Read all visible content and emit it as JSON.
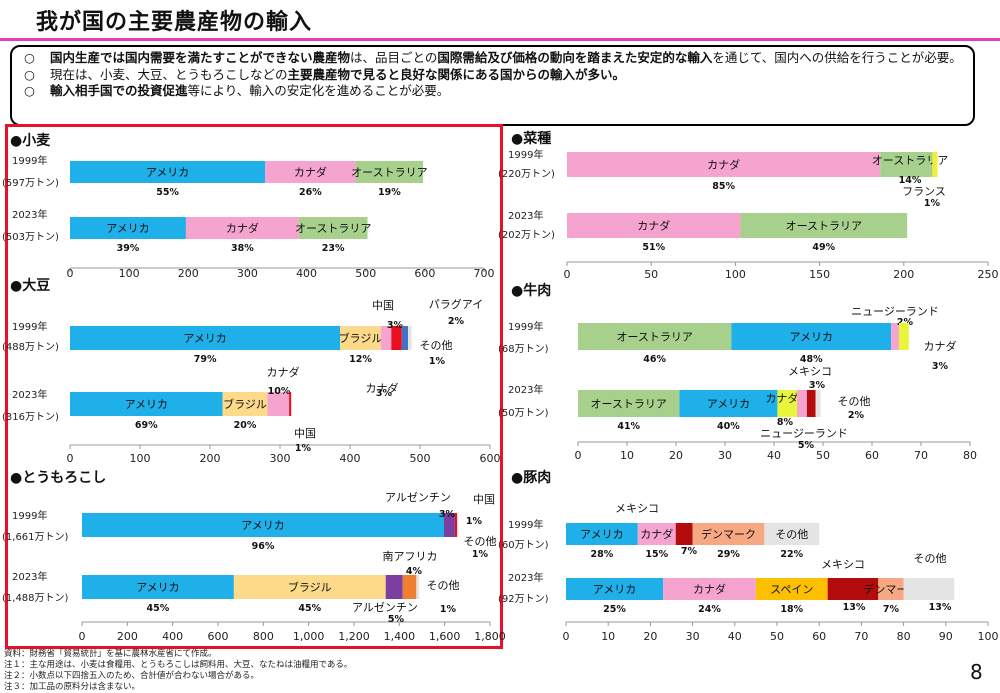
{
  "header": {
    "title": "我が国の主要農産物の輸入",
    "page_number": "8"
  },
  "summary": [
    {
      "marker": "○",
      "parts": [
        {
          "t": "国内生産では国内需要を満たすことができない農産物",
          "b": true
        },
        {
          "t": "は、品目ごとの",
          "b": false
        },
        {
          "t": "国際需給及び価格の動向を踏まえた安定的な輸入",
          "b": true
        },
        {
          "t": "を通じて、国内への供給を行うことが必要。",
          "b": false
        }
      ]
    },
    {
      "marker": "○",
      "parts": [
        {
          "t": "現在は、小麦、大豆、とうもろこしなどの",
          "b": false
        },
        {
          "t": "主要農産物で見ると良好な関係にある国からの輸入が多い。",
          "b": true
        }
      ]
    },
    {
      "marker": "○",
      "parts": [
        {
          "t": "輸入相手国での投資促進",
          "b": true
        },
        {
          "t": "等により、輸入の安定化を進めることが必要。",
          "b": false
        }
      ]
    }
  ],
  "colors": {
    "アメリカ": "#1fb0ea",
    "カナダ": "#f5a3cf",
    "オーストラリア": "#a6d08c",
    "ブラジル": "#fdd98a",
    "中国": "#e8101e",
    "パラグアイ": "#5b8ed6",
    "その他": "#e4e4e4",
    "アルゼンチン": "#7a3fa0",
    "南アフリカ": "#f07f32",
    "フランス": "#f2ee3a",
    "ニュージーランド": "#f5a3cf",
    "カナダ_牛肉": "#e8f53a",
    "メキシコ": "#b40c0c",
    "デンマーク": "#f5a882",
    "スペイン": "#fdc000",
    "南アフリカ_alt": "#f07f32",
    "パラグアイ_alt": "#4472c4"
  },
  "notes": [
    "資料：財務省「貿易統計」を基に農林水産省にて作成。",
    "注１：主な用途は、小麦は食糧用、とうもろこしは飼料用、大豆、なたねは油糧用である。",
    "注２：小数点以下四捨五入のため、合計値が合わない場合がある。",
    "注３：加工品の原料分は含まない。"
  ],
  "chart_data": [
    {
      "type": "bar",
      "orientation": "horizontal",
      "stacked": true,
      "title": "●小麦",
      "xlim": [
        0,
        700
      ],
      "xticks": [
        "0",
        "100",
        "200",
        "300",
        "400",
        "500",
        "600",
        "700"
      ],
      "rows": [
        {
          "year": "1999年",
          "total": "(597万トン)",
          "segments": [
            {
              "name": "アメリカ",
              "value": 330,
              "pct": "55%"
            },
            {
              "name": "カナダ",
              "value": 153,
              "pct": "26%"
            },
            {
              "name": "オーストラリア",
              "value": 114,
              "pct": "19%"
            }
          ]
        },
        {
          "year": "2023年",
          "total": "(503万トン)",
          "segments": [
            {
              "name": "アメリカ",
              "value": 196,
              "pct": "39%"
            },
            {
              "name": "カナダ",
              "value": 191,
              "pct": "38%"
            },
            {
              "name": "オーストラリア",
              "value": 116,
              "pct": "23%"
            }
          ]
        }
      ]
    },
    {
      "type": "bar",
      "orientation": "horizontal",
      "stacked": true,
      "title": "●大豆",
      "xlim": [
        0,
        600
      ],
      "xticks": [
        "0",
        "100",
        "200",
        "300",
        "400",
        "500",
        "600"
      ],
      "rows": [
        {
          "year": "1999年",
          "total": "(488万トン)",
          "segments": [
            {
              "name": "アメリカ",
              "value": 386,
              "pct": "79%"
            },
            {
              "name": "ブラジル",
              "value": 58,
              "pct": "12%"
            },
            {
              "name": "カナダ",
              "value": 15,
              "pct": "3%"
            },
            {
              "name": "中国",
              "value": 15,
              "pct": "3%"
            },
            {
              "name": "パラグアイ",
              "value": 9,
              "pct": "2%"
            },
            {
              "name": "その他",
              "value": 5,
              "pct": "1%"
            }
          ]
        },
        {
          "year": "2023年",
          "total": "(316万トン)",
          "segments": [
            {
              "name": "アメリカ",
              "value": 218,
              "pct": "69%"
            },
            {
              "name": "ブラジル",
              "value": 64,
              "pct": "20%"
            },
            {
              "name": "カナダ",
              "value": 31,
              "pct": "10%"
            },
            {
              "name": "中国",
              "value": 3,
              "pct": "1%"
            }
          ]
        }
      ]
    },
    {
      "type": "bar",
      "orientation": "horizontal",
      "stacked": true,
      "title": "●とうもろこし",
      "xlim": [
        0,
        1800
      ],
      "xticks": [
        "0",
        "200",
        "400",
        "600",
        "800",
        "1,000",
        "1,200",
        "1,400",
        "1,600",
        "1,800"
      ],
      "rows": [
        {
          "year": "1999年",
          "total": "(1,661万トン)",
          "segments": [
            {
              "name": "アメリカ",
              "value": 1597,
              "pct": "96%"
            },
            {
              "name": "アルゼンチン",
              "value": 48,
              "pct": "3%"
            },
            {
              "name": "中国",
              "value": 10,
              "pct": "1%"
            },
            {
              "name": "その他",
              "value": 6,
              "pct": "1%"
            }
          ]
        },
        {
          "year": "2023年",
          "total": "(1,488万トン)",
          "segments": [
            {
              "name": "アメリカ",
              "value": 670,
              "pct": "45%"
            },
            {
              "name": "ブラジル",
              "value": 670,
              "pct": "45%"
            },
            {
              "name": "アルゼンチン",
              "value": 75,
              "pct": "5%"
            },
            {
              "name": "南アフリカ",
              "value": 60,
              "pct": "4%"
            },
            {
              "name": "その他",
              "value": 13,
              "pct": "1%"
            }
          ]
        }
      ]
    },
    {
      "type": "bar",
      "orientation": "horizontal",
      "stacked": true,
      "title": "●菜種",
      "xlim": [
        0,
        250
      ],
      "xticks": [
        "0",
        "50",
        "100",
        "150",
        "200",
        "250"
      ],
      "rows": [
        {
          "year": "1999年",
          "total": "(220万トン)",
          "segments": [
            {
              "name": "カナダ",
              "value": 186,
              "pct": "85%"
            },
            {
              "name": "オーストラリア",
              "value": 31,
              "pct": "14%"
            },
            {
              "name": "フランス",
              "value": 3,
              "pct": "1%"
            }
          ]
        },
        {
          "year": "2023年",
          "total": "(202万トン)",
          "segments": [
            {
              "name": "カナダ",
              "value": 103,
              "pct": "51%"
            },
            {
              "name": "オーストラリア",
              "value": 99,
              "pct": "49%"
            }
          ]
        }
      ]
    },
    {
      "type": "bar",
      "orientation": "horizontal",
      "stacked": true,
      "title": "●牛肉",
      "xlim": [
        0,
        80
      ],
      "xticks": [
        "0",
        "10",
        "20",
        "30",
        "40",
        "50",
        "60",
        "70",
        "80"
      ],
      "rows": [
        {
          "year": "1999年",
          "total": "(68万トン)",
          "segments": [
            {
              "name": "オーストラリア",
              "value": 31.3,
              "pct": "46%"
            },
            {
              "name": "アメリカ",
              "value": 32.6,
              "pct": "48%"
            },
            {
              "name": "ニュージーランド",
              "value": 1.6,
              "pct": "2%"
            },
            {
              "name": "カナダ",
              "value": 2.0,
              "pct": "3%"
            }
          ]
        },
        {
          "year": "2023年",
          "total": "(50万トン)",
          "segments": [
            {
              "name": "オーストラリア",
              "value": 20.7,
              "pct": "41%"
            },
            {
              "name": "アメリカ",
              "value": 20.0,
              "pct": "40%"
            },
            {
              "name": "カナダ",
              "value": 4.0,
              "pct": "8%"
            },
            {
              "name": "ニュージーランド",
              "value": 2.0,
              "pct": "5%"
            },
            {
              "name": "メキシコ",
              "value": 1.8,
              "pct": "3%"
            },
            {
              "name": "その他",
              "value": 1.0,
              "pct": "2%"
            }
          ]
        }
      ]
    },
    {
      "type": "bar",
      "orientation": "horizontal",
      "stacked": true,
      "title": "●豚肉",
      "xlim": [
        0,
        100
      ],
      "xticks": [
        "0",
        "10",
        "20",
        "30",
        "40",
        "50",
        "60",
        "70",
        "80",
        "90",
        "100"
      ],
      "rows": [
        {
          "year": "1999年",
          "total": "(60万トン)",
          "segments": [
            {
              "name": "アメリカ",
              "value": 17,
              "pct": "28%"
            },
            {
              "name": "カナダ",
              "value": 9,
              "pct": "15%"
            },
            {
              "name": "メキシコ",
              "value": 4,
              "pct": "7%"
            },
            {
              "name": "デンマーク",
              "value": 17,
              "pct": "29%"
            },
            {
              "name": "その他",
              "value": 13,
              "pct": "22%"
            }
          ]
        },
        {
          "year": "2023年",
          "total": "(92万トン)",
          "segments": [
            {
              "name": "アメリカ",
              "value": 23,
              "pct": "25%"
            },
            {
              "name": "カナダ",
              "value": 22,
              "pct": "24%"
            },
            {
              "name": "スペイン",
              "value": 17,
              "pct": "18%"
            },
            {
              "name": "メキシコ",
              "value": 12,
              "pct": "13%"
            },
            {
              "name": "デンマーク",
              "value": 6,
              "pct": "7%"
            },
            {
              "name": "その他",
              "value": 12,
              "pct": "13%"
            }
          ]
        }
      ]
    }
  ]
}
